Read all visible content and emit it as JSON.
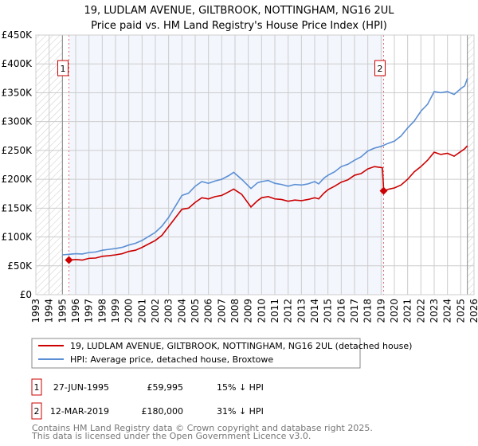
{
  "chart_data": {
    "type": "line",
    "title": "19, LUDLAM AVENUE, GILTBROOK, NOTTINGHAM, NG16 2UL",
    "subtitle": "Price paid vs. HM Land Registry's House Price Index (HPI)",
    "xlim": [
      1993,
      2026
    ],
    "ylim": [
      0,
      450000
    ],
    "y_ticks": [
      0,
      50000,
      100000,
      150000,
      200000,
      250000,
      300000,
      350000,
      400000,
      450000
    ],
    "y_tick_labels": [
      "£0",
      "£50K",
      "£100K",
      "£150K",
      "£200K",
      "£250K",
      "£300K",
      "£350K",
      "£400K",
      "£450K"
    ],
    "x_ticks": [
      "1993",
      "1994",
      "1995",
      "1996",
      "1997",
      "1998",
      "1999",
      "2000",
      "2001",
      "2002",
      "2003",
      "2004",
      "2005",
      "2006",
      "2007",
      "2008",
      "2009",
      "2010",
      "2011",
      "2012",
      "2013",
      "2014",
      "2015",
      "2016",
      "2017",
      "2018",
      "2019",
      "2020",
      "2021",
      "2022",
      "2023",
      "2024",
      "2025",
      "2026"
    ],
    "grid": true,
    "data_start": 1995.0,
    "data_end": 2025.5,
    "series": [
      {
        "name": "19, LUDLAM AVENUE, GILTBROOK, NOTTINGHAM, NG16 2UL (detached house)",
        "color": "#cc0000",
        "x": [
          1995.5,
          1996,
          1996.5,
          1997,
          1997.5,
          1998,
          1998.5,
          1999,
          1999.5,
          2000,
          2000.5,
          2001,
          2001.5,
          2002,
          2002.5,
          2003,
          2003.5,
          2004,
          2004.5,
          2005,
          2005.5,
          2006,
          2006.5,
          2007,
          2007.5,
          2007.9,
          2008.5,
          2009.2,
          2009.7,
          2010,
          2010.5,
          2011,
          2011.5,
          2012,
          2012.5,
          2013,
          2013.5,
          2014,
          2014.3,
          2014.7,
          2015,
          2015.5,
          2016,
          2016.5,
          2017,
          2017.5,
          2018,
          2018.5,
          2019.1,
          2019.2,
          2019.6,
          2020,
          2020.5,
          2021,
          2021.5,
          2022,
          2022.5,
          2023,
          2023.5,
          2024,
          2024.5,
          2025,
          2025.3,
          2025.5
        ],
        "y": [
          59995,
          61000,
          60000,
          63000,
          63500,
          66500,
          67500,
          69000,
          71000,
          75000,
          77000,
          82000,
          88000,
          94000,
          103000,
          118000,
          133000,
          148000,
          150000,
          160000,
          168000,
          166000,
          170000,
          172000,
          178000,
          183000,
          174000,
          152000,
          163000,
          168000,
          170000,
          166000,
          165000,
          162000,
          164000,
          163000,
          165000,
          168000,
          166000,
          176000,
          182000,
          188000,
          195000,
          199000,
          207000,
          210000,
          218000,
          222000,
          220000,
          180000,
          183000,
          185000,
          190000,
          200000,
          213000,
          222000,
          233000,
          247000,
          243000,
          245000,
          240000,
          248000,
          253000,
          258000
        ]
      },
      {
        "name": "HPI: Average price, detached house, Broxtowe",
        "color": "#5b8fd4",
        "x": [
          1995,
          1995.5,
          1996,
          1996.5,
          1997,
          1997.5,
          1998,
          1998.5,
          1999,
          1999.5,
          2000,
          2000.5,
          2001,
          2001.5,
          2002,
          2002.5,
          2003,
          2003.5,
          2004,
          2004.5,
          2005,
          2005.5,
          2006,
          2006.5,
          2007,
          2007.5,
          2007.9,
          2008.5,
          2009.2,
          2009.7,
          2010,
          2010.5,
          2011,
          2011.5,
          2012,
          2012.5,
          2013,
          2013.5,
          2014,
          2014.3,
          2014.7,
          2015,
          2015.5,
          2016,
          2016.5,
          2017,
          2017.5,
          2018,
          2018.5,
          2019,
          2019.5,
          2020,
          2020.5,
          2021,
          2021.5,
          2022,
          2022.5,
          2023,
          2023.5,
          2024,
          2024.5,
          2025,
          2025.3,
          2025.5
        ],
        "y": [
          69000,
          70000,
          71000,
          70500,
          73000,
          74000,
          77000,
          78500,
          80000,
          82000,
          86000,
          89000,
          94000,
          101000,
          108000,
          119000,
          134000,
          153000,
          172000,
          176000,
          188000,
          196000,
          193000,
          197000,
          200000,
          206000,
          212000,
          200000,
          184000,
          194000,
          196000,
          198000,
          193000,
          191000,
          188000,
          191000,
          190000,
          192000,
          196000,
          192000,
          202000,
          207000,
          213000,
          222000,
          226000,
          233000,
          239000,
          249000,
          254000,
          257000,
          262000,
          266000,
          275000,
          289000,
          301000,
          318000,
          330000,
          352000,
          350000,
          352000,
          347000,
          357000,
          362000,
          375000
        ]
      }
    ],
    "sales": [
      {
        "label": "1",
        "x": 1995.49,
        "price": 59995
      },
      {
        "label": "2",
        "x": 2019.19,
        "price": 180000
      }
    ],
    "legend": {
      "position": "bottom",
      "entries": [
        "19, LUDLAM AVENUE, GILTBROOK, NOTTINGHAM, NG16 2UL (detached house)",
        "HPI: Average price, detached house, Broxtowe"
      ]
    }
  },
  "table": [
    {
      "num": "1",
      "date": "27-JUN-1995",
      "price": "£59,995",
      "hpi": "15% ↓ HPI"
    },
    {
      "num": "2",
      "date": "12-MAR-2019",
      "price": "£180,000",
      "hpi": "31% ↓ HPI"
    }
  ],
  "footer": [
    "Contains HM Land Registry data © Crown copyright and database right 2025.",
    "This data is licensed under the Open Government Licence v3.0."
  ]
}
